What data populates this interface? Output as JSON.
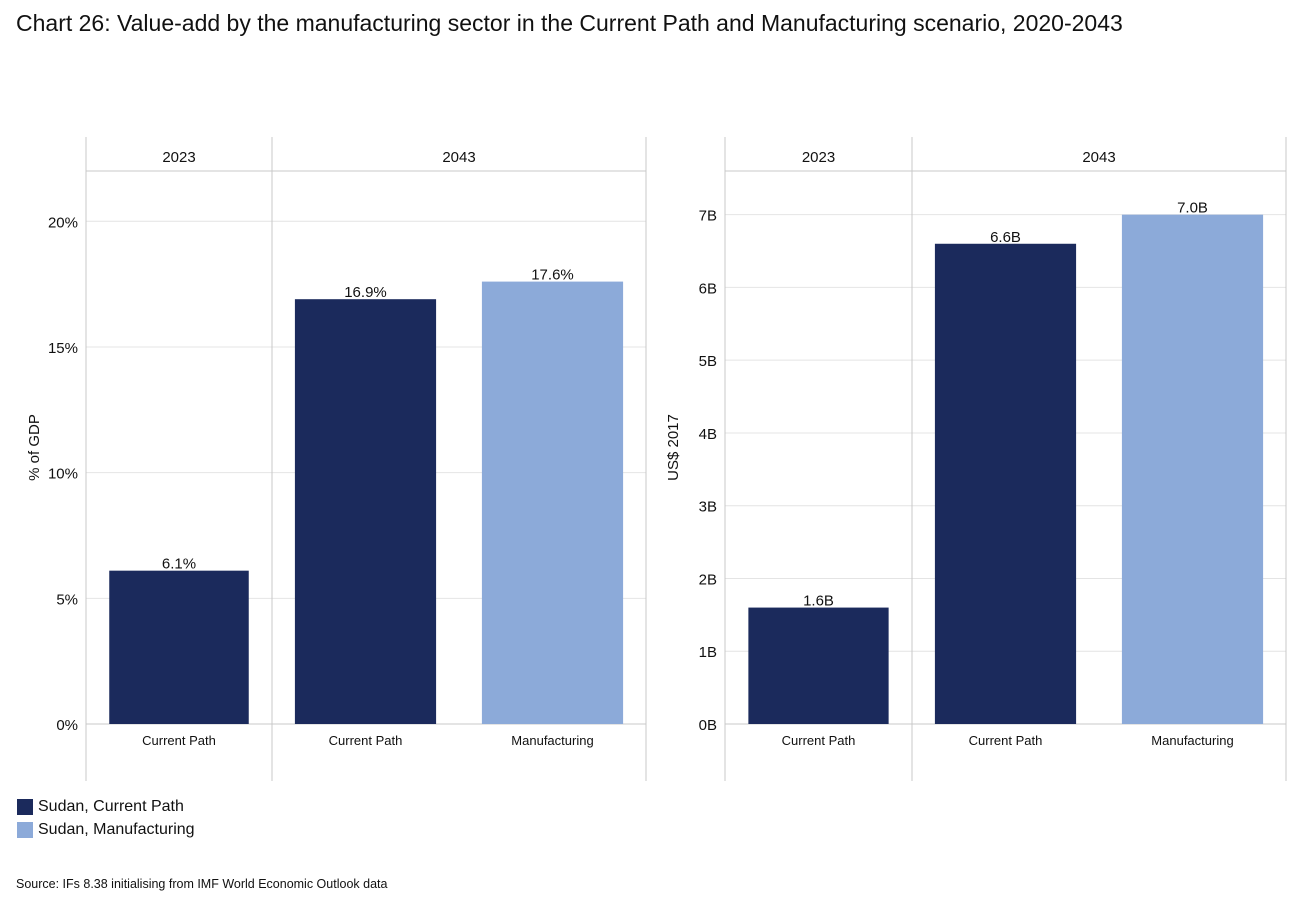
{
  "title": "Chart 26: Value-add by the manufacturing sector in the Current Path and Manufacturing scenario, 2020-2043",
  "colors": {
    "current_path": "#1b2a5c",
    "manufacturing": "#8caad9"
  },
  "legend": [
    {
      "label": "Sudan, Current Path",
      "color": "#1b2a5c"
    },
    {
      "label": "Sudan, Manufacturing",
      "color": "#8caad9"
    }
  ],
  "source": "Source: IFs 8.38 initialising from IMF World Economic Outlook data",
  "chart_data": [
    {
      "type": "bar",
      "ylabel": "% of GDP",
      "ylim": [
        0,
        22
      ],
      "yticks": [
        0,
        5,
        10,
        15,
        20
      ],
      "ytick_labels": [
        "0%",
        "5%",
        "10%",
        "15%",
        "20%"
      ],
      "grid": true,
      "groups": [
        {
          "label": "2023",
          "bars": [
            {
              "category": "Current Path",
              "series": "Sudan, Current Path",
              "value": 6.1,
              "label": "6.1%"
            }
          ]
        },
        {
          "label": "2043",
          "bars": [
            {
              "category": "Current Path",
              "series": "Sudan, Current Path",
              "value": 16.9,
              "label": "16.9%"
            },
            {
              "category": "Manufacturing",
              "series": "Sudan, Manufacturing",
              "value": 17.6,
              "label": "17.6%"
            }
          ]
        }
      ]
    },
    {
      "type": "bar",
      "ylabel": "US$ 2017",
      "ylim": [
        0,
        7.6
      ],
      "yticks": [
        0,
        1,
        2,
        3,
        4,
        5,
        6,
        7
      ],
      "ytick_labels": [
        "0B",
        "1B",
        "2B",
        "3B",
        "4B",
        "5B",
        "6B",
        "7B"
      ],
      "grid": true,
      "groups": [
        {
          "label": "2023",
          "bars": [
            {
              "category": "Current Path",
              "series": "Sudan, Current Path",
              "value": 1.6,
              "label": "1.6B"
            }
          ]
        },
        {
          "label": "2043",
          "bars": [
            {
              "category": "Current Path",
              "series": "Sudan, Current Path",
              "value": 6.6,
              "label": "6.6B"
            },
            {
              "category": "Manufacturing",
              "series": "Sudan, Manufacturing",
              "value": 7.0,
              "label": "7.0B"
            }
          ]
        }
      ]
    }
  ]
}
